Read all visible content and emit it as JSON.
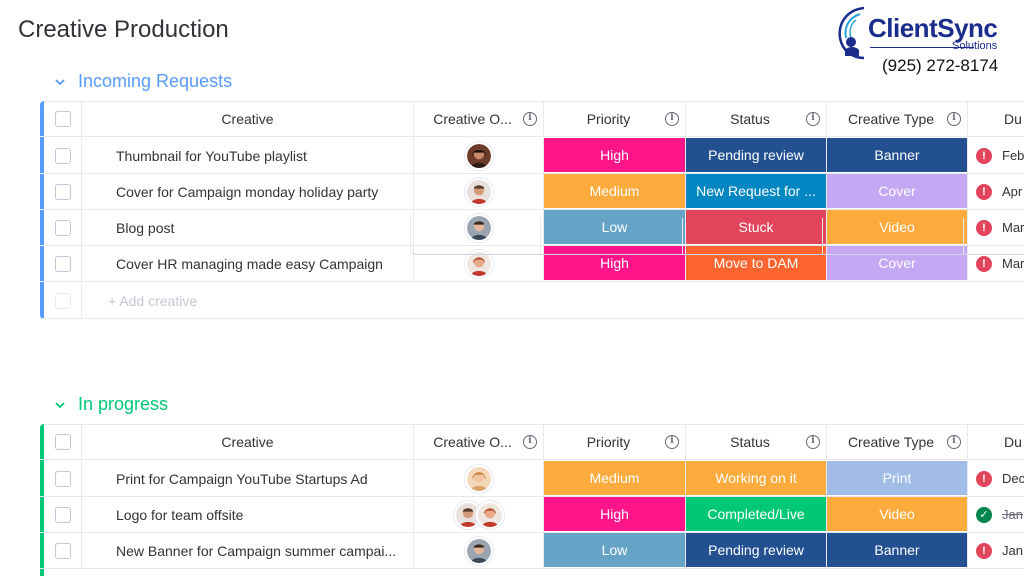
{
  "board": {
    "title": "Creative Production"
  },
  "brand": {
    "name": "ClientSync",
    "sub": "Solutions",
    "phone": "(925) 272-8174"
  },
  "columns": {
    "name": "Creative",
    "owner": "Creative O...",
    "priority": "Priority",
    "status": "Status",
    "type": "Creative Type",
    "due": "Du"
  },
  "colors": {
    "high": "#ff158a",
    "medium": "#fdab3d",
    "low": "#66a3c6",
    "pending": "#225091",
    "new_request": "#0086c0",
    "stuck": "#e2445c",
    "move_dam": "#ff642e",
    "working": "#fdab3d",
    "done": "#00c875",
    "banner": "#225091",
    "cover": "#c4a8f4",
    "video": "#fdab3d",
    "print": "#a1bce6"
  },
  "groups": [
    {
      "title": "Incoming Requests",
      "add_label": "+ Add creative",
      "rows": [
        {
          "name": "Thumbnail for YouTube playlist",
          "priority": "High",
          "status": "Pending review",
          "type": "Banner",
          "due": "Feb",
          "due_icon": "alert-icon"
        },
        {
          "name": "Cover for Campaign monday holiday party",
          "priority": "Medium",
          "status": "New Request for ...",
          "type": "Cover",
          "due": "Apr",
          "due_icon": "alert-icon"
        },
        {
          "name": "Blog post",
          "priority": "Low",
          "status": "Stuck",
          "type": "Video",
          "due": "Mar",
          "due_icon": "alert-icon"
        },
        {
          "name": "Cover HR managing made easy Campaign",
          "priority": "High",
          "status": "Move to DAM",
          "type": "Cover",
          "due": "Mar",
          "due_icon": "alert-icon"
        }
      ]
    },
    {
      "title": "In progress",
      "rows": [
        {
          "name": "Print for Campaign YouTube Startups Ad",
          "priority": "Medium",
          "status": "Working on it",
          "type": "Print",
          "due": "Dec",
          "due_icon": "alert-icon"
        },
        {
          "name": "Logo for team offsite",
          "priority": "High",
          "status": "Completed/Live",
          "type": "Video",
          "due": "Jan",
          "due_icon": "check-icon"
        },
        {
          "name": "New Banner for Campaign summer campai...",
          "priority": "Low",
          "status": "Pending review",
          "type": "Banner",
          "due": "Jan",
          "due_icon": "alert-icon"
        }
      ]
    }
  ]
}
